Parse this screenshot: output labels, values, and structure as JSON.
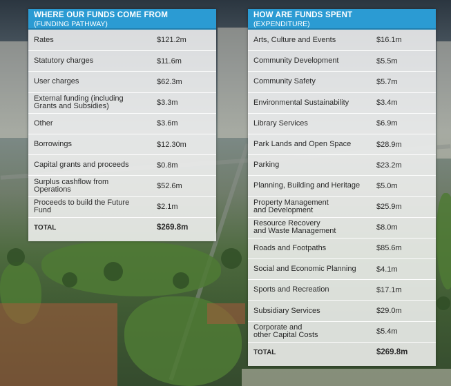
{
  "funding": {
    "title": "WHERE OUR FUNDS COME FROM",
    "subtitle": "(FUNDING PATHWAY)",
    "rows": [
      {
        "label": "Rates",
        "value": "$121.2m"
      },
      {
        "label": "Statutory charges",
        "value": "$11.6m"
      },
      {
        "label": "User charges",
        "value": "$62.3m"
      },
      {
        "label": "External funding (including\nGrants and Subsidies)",
        "value": "$3.3m"
      },
      {
        "label": "Other",
        "value": "$3.6m"
      },
      {
        "label": "Borrowings",
        "value": "$12.30m"
      },
      {
        "label": "Capital grants and proceeds",
        "value": "$0.8m"
      },
      {
        "label": "Surplus cashflow from\nOperations",
        "value": "$52.6m"
      },
      {
        "label": "Proceeds to build the Future\nFund",
        "value": "$2.1m"
      }
    ],
    "total": {
      "label": "TOTAL",
      "value": "$269.8m"
    }
  },
  "spend": {
    "title": "HOW ARE FUNDS SPENT",
    "subtitle": "(EXPENDITURE)",
    "rows": [
      {
        "label": "Arts, Culture and Events",
        "value": "$16.1m"
      },
      {
        "label": "Community Development",
        "value": "$5.5m"
      },
      {
        "label": "Community Safety",
        "value": "$5.7m"
      },
      {
        "label": "Environmental Sustainability",
        "value": "$3.4m"
      },
      {
        "label": "Library Services",
        "value": "$6.9m"
      },
      {
        "label": "Park Lands and Open Space",
        "value": "$28.9m"
      },
      {
        "label": "Parking",
        "value": "$23.2m"
      },
      {
        "label": "Planning, Building and Heritage",
        "value": "$5.0m"
      },
      {
        "label": "Property Management\nand Development",
        "value": "$25.9m"
      },
      {
        "label": "Resource Recovery\nand Waste Management",
        "value": "$8.0m"
      },
      {
        "label": "Roads and Footpaths",
        "value": "$85.6m"
      },
      {
        "label": "Social and Economic Planning",
        "value": "$4.1m"
      },
      {
        "label": "Sports and Recreation",
        "value": "$17.1m"
      },
      {
        "label": "Subsidiary Services",
        "value": "$29.0m"
      },
      {
        "label": "Corporate and\nother Capital Costs",
        "value": "$5.4m"
      }
    ],
    "total": {
      "label": "TOTAL",
      "value": "$269.8m"
    }
  }
}
